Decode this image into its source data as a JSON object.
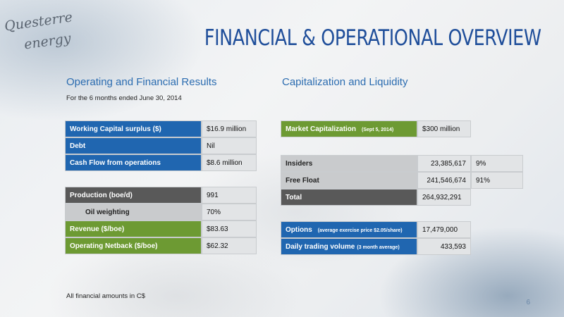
{
  "logo": {
    "line1": "Questerre",
    "line2": "energy"
  },
  "title": "FINANCIAL & OPERATIONAL OVERVIEW",
  "left": {
    "heading": "Operating and Financial Results",
    "subheading": "For the 6 months ended June 30, 2014",
    "table1": [
      {
        "label": "Working Capital surplus ($)",
        "value": "$16.9 million"
      },
      {
        "label": "Debt",
        "value": "Nil"
      },
      {
        "label": "Cash Flow from operations",
        "value": "$8.6 million"
      }
    ],
    "table2": [
      {
        "label": "Production (boe/d)",
        "value": "991"
      },
      {
        "label": "Oil weighting",
        "value": "70%"
      },
      {
        "label": "Revenue ($/boe)",
        "value": "$83.63"
      },
      {
        "label": "Operating Netback ($/boe)",
        "value": "$62.32"
      }
    ]
  },
  "right": {
    "heading": "Capitalization and Liquidity",
    "market_cap": {
      "label": "Market Capitalization",
      "note": "(Sept 5, 2014)",
      "value": "$300 million"
    },
    "shares": [
      {
        "label": "Insiders",
        "value": "23,385,617",
        "pct": "9%"
      },
      {
        "label": "Free Float",
        "value": "241,546,674",
        "pct": "91%"
      },
      {
        "label": "Total",
        "value": "264,932,291"
      }
    ],
    "options": {
      "label": "Options",
      "note": "(average exercise price $2.05/share)",
      "value": "17,479,000"
    },
    "trading": {
      "label": "Daily trading volume",
      "note": "(3 month average)",
      "value": "433,593"
    }
  },
  "footer": "All financial amounts in C$",
  "page_number": "6",
  "colors": {
    "blue": "#2066b0",
    "green": "#6d9a33",
    "dark_gray": "#595959",
    "title": "#1f4e9a"
  }
}
